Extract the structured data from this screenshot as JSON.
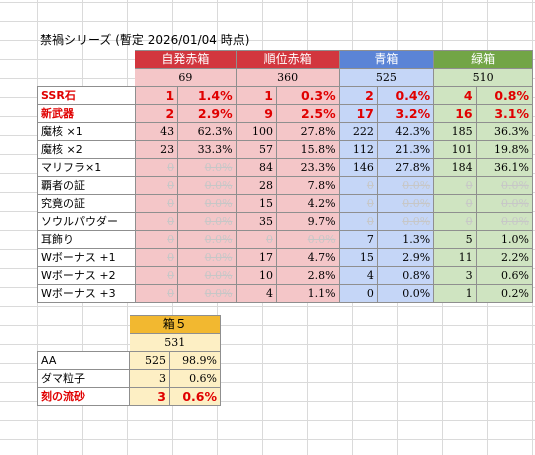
{
  "title": "禁禍シリーズ (暫定 2026/01/04 時点)",
  "main_table": {
    "headers": [
      "自発赤箱",
      "順位赤箱",
      "青箱",
      "緑箱"
    ],
    "totals": [
      "69",
      "360",
      "525",
      "510"
    ],
    "rows": [
      {
        "label": "SSR石",
        "emph": true,
        "cells": [
          [
            "1",
            "1.4%"
          ],
          [
            "1",
            "0.3%"
          ],
          [
            "2",
            "0.4%"
          ],
          [
            "4",
            "0.8%"
          ]
        ]
      },
      {
        "label": "新武器",
        "emph": true,
        "cells": [
          [
            "2",
            "2.9%"
          ],
          [
            "9",
            "2.5%"
          ],
          [
            "17",
            "3.2%"
          ],
          [
            "16",
            "3.1%"
          ]
        ]
      },
      {
        "label": "魔核 ×1",
        "cells": [
          [
            "43",
            "62.3%"
          ],
          [
            "100",
            "27.8%"
          ],
          [
            "222",
            "42.3%"
          ],
          [
            "185",
            "36.3%"
          ]
        ]
      },
      {
        "label": "魔核 ×2",
        "cells": [
          [
            "23",
            "33.3%"
          ],
          [
            "57",
            "15.8%"
          ],
          [
            "112",
            "21.3%"
          ],
          [
            "101",
            "19.8%"
          ]
        ]
      },
      {
        "label": "マリフラ×1",
        "cells": [
          [
            "0",
            "0.0%"
          ],
          [
            "84",
            "23.3%"
          ],
          [
            "146",
            "27.8%"
          ],
          [
            "184",
            "36.1%"
          ]
        ]
      },
      {
        "label": "覇者の証",
        "cells": [
          [
            "0",
            "0.0%"
          ],
          [
            "28",
            "7.8%"
          ],
          [
            "0",
            "0.0%"
          ],
          [
            "0",
            "0.0%"
          ]
        ]
      },
      {
        "label": "究竟の証",
        "cells": [
          [
            "0",
            "0.0%"
          ],
          [
            "15",
            "4.2%"
          ],
          [
            "0",
            "0.0%"
          ],
          [
            "0",
            "0.0%"
          ]
        ]
      },
      {
        "label": "ソウルパウダー",
        "cells": [
          [
            "0",
            "0.0%"
          ],
          [
            "35",
            "9.7%"
          ],
          [
            "0",
            "0.0%"
          ],
          [
            "0",
            "0.0%"
          ]
        ]
      },
      {
        "label": "耳飾り",
        "cells": [
          [
            "0",
            "0.0%"
          ],
          [
            "0",
            "0.0%"
          ],
          [
            "7",
            "1.3%"
          ],
          [
            "5",
            "1.0%"
          ]
        ]
      },
      {
        "label": "Wボーナス +1",
        "cells": [
          [
            "0",
            "0.0%"
          ],
          [
            "17",
            "4.7%"
          ],
          [
            "15",
            "2.9%"
          ],
          [
            "11",
            "2.2%"
          ]
        ]
      },
      {
        "label": "Wボーナス +2",
        "cells": [
          [
            "0",
            "0.0%"
          ],
          [
            "10",
            "2.8%"
          ],
          [
            "4",
            "0.8%"
          ],
          [
            "3",
            "0.6%"
          ]
        ]
      },
      {
        "label": "Wボーナス +3",
        "cells": [
          [
            "0",
            "0.0%"
          ],
          [
            "4",
            "1.1%"
          ],
          [
            "0",
            "0.0%"
          ],
          [
            "1",
            "0.2%"
          ]
        ]
      }
    ]
  },
  "box5_table": {
    "header": "箱５",
    "total": "531",
    "rows": [
      {
        "label": "AA",
        "count": "525",
        "pct": "98.9%"
      },
      {
        "label": "ダマ粒子",
        "count": "3",
        "pct": "0.6%"
      },
      {
        "label": "刻の流砂",
        "count": "3",
        "pct": "0.6%",
        "emph": true
      }
    ]
  },
  "colors": {
    "red_header": "#d2363e",
    "red_fill": "#f4c6c8",
    "blue_header": "#5b84d6",
    "blue_fill": "#c5d6f7",
    "green_header": "#72a546",
    "green_fill": "#cfe4c1",
    "yellow_header": "#f2b830",
    "yellow_fill": "#fdefc4",
    "emphasis_text": "#e00000"
  }
}
